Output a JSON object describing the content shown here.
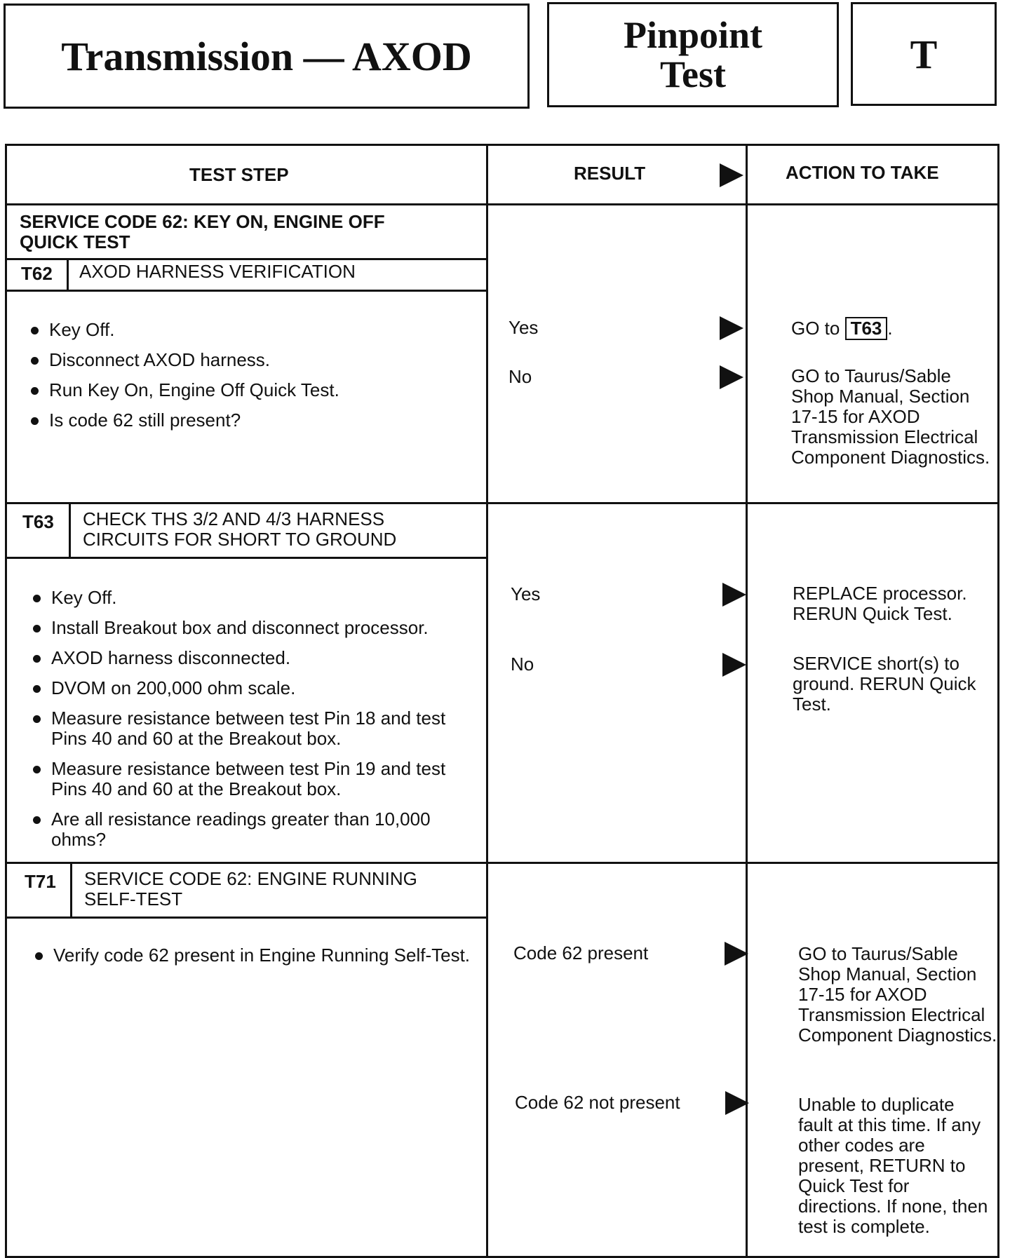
{
  "header": {
    "title": "Transmission — AXOD",
    "section": "Pinpoint Test",
    "letter": "T"
  },
  "columns": {
    "test_step": "TEST STEP",
    "result": "RESULT",
    "action": "ACTION TO TAKE"
  },
  "service_title": "SERVICE CODE 62: KEY ON, ENGINE OFF QUICK TEST",
  "steps": [
    {
      "id": "T62",
      "title": "AXOD HARNESS VERIFICATION",
      "bullets": [
        "Key Off.",
        "Disconnect AXOD harness.",
        "Run Key On, Engine Off Quick Test.",
        "Is code 62 still present?"
      ],
      "results": [
        {
          "label": "Yes",
          "action_prefix": "GO to",
          "action_code": "T63",
          "action_suffix": "."
        },
        {
          "label": "No",
          "action": "GO to Taurus/Sable Shop Manual, Section 17-15 for AXOD Transmission Electrical Component Diagnostics."
        }
      ]
    },
    {
      "id": "T63",
      "title": "CHECK THS 3/2 AND 4/3 HARNESS CIRCUITS FOR SHORT TO GROUND",
      "bullets": [
        "Key Off.",
        "Install Breakout box and disconnect processor.",
        "AXOD harness disconnected.",
        "DVOM on 200,000 ohm scale.",
        "Measure resistance between test Pin 18 and test Pins 40 and 60 at the Breakout box.",
        "Measure resistance between test Pin 19 and test Pins 40 and 60 at the Breakout box.",
        "Are all resistance readings greater than 10,000 ohms?"
      ],
      "results": [
        {
          "label": "Yes",
          "action": "REPLACE processor. RERUN Quick Test."
        },
        {
          "label": "No",
          "action": "SERVICE short(s) to ground. RERUN Quick Test."
        }
      ]
    },
    {
      "id": "T71",
      "title": "SERVICE CODE 62: ENGINE RUNNING SELF-TEST",
      "bullets": [
        "Verify code 62 present in Engine Running Self-Test."
      ],
      "results": [
        {
          "label": "Code 62 present",
          "action": "GO to Taurus/Sable Shop Manual, Section 17-15 for AXOD Transmission Electrical Component Diagnostics."
        },
        {
          "label": "Code 62 not present",
          "action": "Unable to duplicate fault at this time. If any other codes are present, RETURN to Quick Test for directions. If none, then test is complete."
        }
      ]
    }
  ]
}
